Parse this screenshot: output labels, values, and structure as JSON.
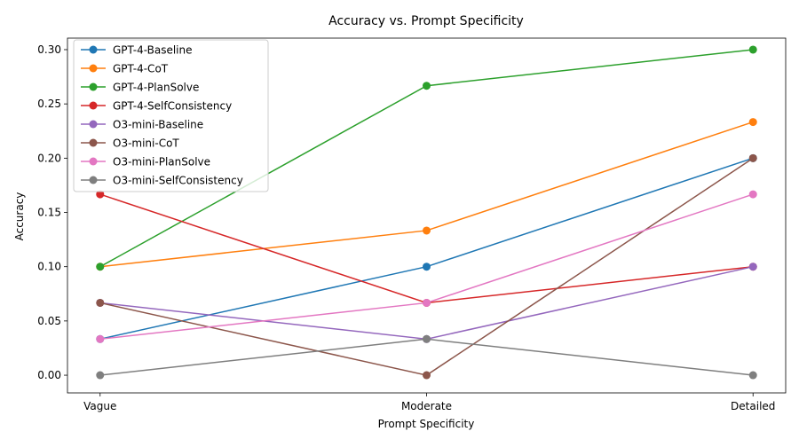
{
  "chart_data": {
    "type": "line",
    "title": "Accuracy vs. Prompt Specificity",
    "xlabel": "Prompt Specificity",
    "ylabel": "Accuracy",
    "categories": [
      "Vague",
      "Moderate",
      "Detailed"
    ],
    "ylim": [
      -0.0163,
      0.3106
    ],
    "yticks": [
      0.0,
      0.05,
      0.1,
      0.15,
      0.2,
      0.25,
      0.3
    ],
    "ytick_labels": [
      "0.00",
      "0.05",
      "0.10",
      "0.15",
      "0.20",
      "0.25",
      "0.30"
    ],
    "grid": false,
    "legend_position": "top-left",
    "series": [
      {
        "name": "GPT-4-Baseline",
        "color": "#1f77b4",
        "values": [
          0.0333,
          0.1,
          0.2
        ]
      },
      {
        "name": "GPT-4-CoT",
        "color": "#ff7f0e",
        "values": [
          0.1,
          0.1333,
          0.2333
        ]
      },
      {
        "name": "GPT-4-PlanSolve",
        "color": "#2ca02c",
        "values": [
          0.1,
          0.2667,
          0.3
        ]
      },
      {
        "name": "GPT-4-SelfConsistency",
        "color": "#d62728",
        "values": [
          0.1667,
          0.0667,
          0.1
        ]
      },
      {
        "name": "O3-mini-Baseline",
        "color": "#9467bd",
        "values": [
          0.0667,
          0.0333,
          0.1
        ]
      },
      {
        "name": "O3-mini-CoT",
        "color": "#8c564b",
        "values": [
          0.0667,
          0.0,
          0.2
        ]
      },
      {
        "name": "O3-mini-PlanSolve",
        "color": "#e377c2",
        "values": [
          0.0333,
          0.0667,
          0.1667
        ]
      },
      {
        "name": "O3-mini-SelfConsistency",
        "color": "#7f7f7f",
        "values": [
          0.0,
          0.0333,
          0.0
        ]
      }
    ]
  }
}
